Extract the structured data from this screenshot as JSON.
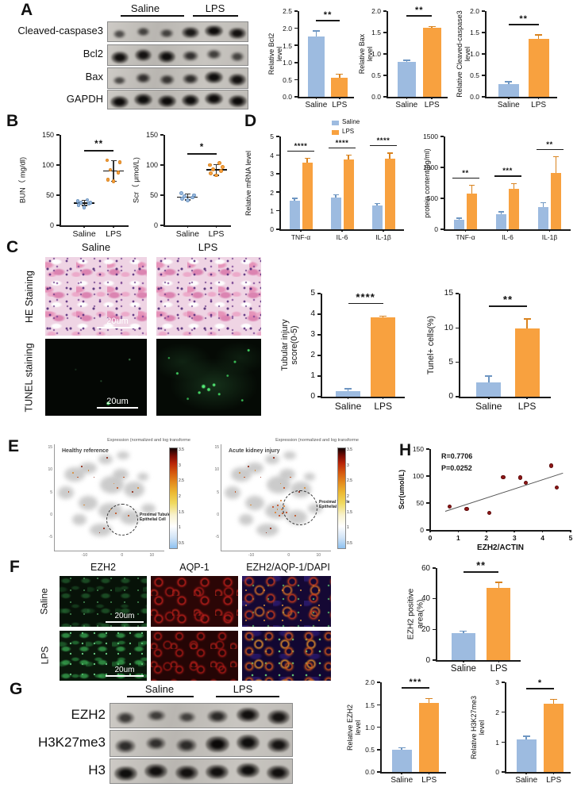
{
  "colors": {
    "saline": "#9dbbe0",
    "saline_edge": "#6e96c2",
    "lps": "#f8a13f",
    "lps_edge": "#d9831f",
    "axis": "#1a1a1a",
    "dot_red": "#8f1616",
    "dot_red_edge": "#5f0d0d"
  },
  "groups": [
    "Saline",
    "LPS"
  ],
  "panel_letters": {
    "a": "A",
    "b": "B",
    "c": "C",
    "d": "D",
    "e": "E",
    "f": "F",
    "g": "G",
    "h": "H"
  },
  "scale_bar": "20um",
  "legend": {
    "items": [
      "Saline",
      "LPS"
    ]
  },
  "blots": {
    "a": {
      "rows": [
        {
          "label": "Cleaved-caspase3",
          "bands": [
            0.25,
            0.35,
            0.35,
            0.8,
            0.95,
            0.88
          ]
        },
        {
          "label": "Bcl2",
          "bands": [
            0.9,
            0.86,
            0.92,
            0.55,
            0.4,
            0.34
          ]
        },
        {
          "label": "Bax",
          "bands": [
            0.3,
            0.55,
            0.5,
            0.6,
            0.92,
            0.88
          ]
        },
        {
          "label": "GAPDH",
          "bands": [
            0.95,
            0.93,
            0.95,
            0.94,
            0.95,
            0.96
          ]
        }
      ]
    },
    "g": {
      "rows": [
        {
          "label": "EZH2",
          "bands": [
            0.45,
            0.4,
            0.35,
            0.62,
            0.9,
            0.85
          ]
        },
        {
          "label": "H3K27me3",
          "bands": [
            0.6,
            0.55,
            0.6,
            0.97,
            0.92,
            0.85
          ]
        },
        {
          "label": "H3",
          "bands": [
            0.92,
            0.9,
            0.88,
            0.9,
            0.92,
            0.9
          ]
        }
      ]
    }
  },
  "panel_c": {
    "row_labels": [
      "HE Staining",
      "TUNEL staining"
    ]
  },
  "panel_f": {
    "col_labels": [
      "EZH2",
      "AQP-1",
      "EZH2/AQP-1/DAPI"
    ],
    "row_labels": [
      "Saline",
      "LPS"
    ]
  },
  "umap": {
    "cb_title": "Expression (normalized and log transforme",
    "cb_ticks": [
      "3.5",
      "3",
      "2.5",
      "2",
      "1.5",
      "1",
      "0.5"
    ],
    "yticks": [
      "15",
      "10",
      "5",
      "0",
      "-5"
    ],
    "xticks": [
      "-10",
      "0",
      "10"
    ],
    "titles": [
      "Healthy reference",
      "Acute kidney injury"
    ],
    "annotation": "Proximal Tubule\nEpithelial Cell"
  },
  "chart_data": {
    "bcl2": {
      "type": "bars",
      "title": "",
      "ylabel": "Relative Bcl2\nlevel",
      "ylim": [
        0,
        2.5
      ],
      "step": 0.5,
      "dec": 1,
      "categories": [
        "Saline",
        "LPS"
      ],
      "values": [
        1.75,
        0.56
      ],
      "errors": [
        0.17,
        0.1
      ],
      "sig": "**"
    },
    "bax": {
      "type": "bars",
      "ylabel": "Relative Bax\nlevel",
      "ylim": [
        0,
        2.0
      ],
      "step": 0.5,
      "dec": 1,
      "categories": [
        "Saline",
        "LPS"
      ],
      "values": [
        0.81,
        1.61
      ],
      "errors": [
        0.04,
        0.03
      ],
      "sig": "**"
    },
    "ccasp3": {
      "type": "bars",
      "ylabel": "Relative Cleaved-caspase3\nlevel",
      "ylim": [
        0,
        2.0
      ],
      "step": 0.5,
      "dec": 1,
      "categories": [
        "Saline",
        "LPS"
      ],
      "values": [
        0.29,
        1.36
      ],
      "errors": [
        0.06,
        0.08
      ],
      "sig": "**"
    },
    "bun": {
      "type": "dots",
      "ylabel": "BUN（ mg/dl)",
      "ylim": [
        0,
        150
      ],
      "step": 50,
      "dec": 0,
      "categories": [
        "Saline",
        "LPS"
      ],
      "points": [
        [
          30,
          34,
          36,
          37,
          38,
          40,
          42
        ],
        [
          73,
          76,
          88,
          92,
          105,
          108
        ]
      ],
      "mean": [
        37,
        90
      ],
      "sd": [
        4,
        17
      ],
      "sig": "**"
    },
    "scr": {
      "type": "dots",
      "ylabel": "Scr（ μmol/L)",
      "ylim": [
        0,
        150
      ],
      "step": 50,
      "dec": 0,
      "categories": [
        "Saline",
        "LPS"
      ],
      "points": [
        [
          41,
          44,
          46,
          48,
          50,
          53
        ],
        [
          83,
          86,
          90,
          93,
          97,
          100,
          103
        ]
      ],
      "mean": [
        47,
        92
      ],
      "sd": [
        5,
        9
      ],
      "sig": "*"
    },
    "mrna": {
      "type": "groups",
      "ylabel": "Relative mRNA level",
      "ylim": [
        0,
        5
      ],
      "step": 1,
      "dec": 0,
      "categories": [
        "TNF-α",
        "IL-6",
        "IL-1β"
      ],
      "series": [
        {
          "name": "Saline",
          "values": [
            1.55,
            1.72,
            1.3
          ],
          "errors": [
            0.12,
            0.15,
            0.08
          ]
        },
        {
          "name": "LPS",
          "values": [
            3.57,
            3.77,
            3.82
          ],
          "errors": [
            0.25,
            0.22,
            0.28
          ]
        }
      ],
      "sig": [
        "****",
        "****",
        "****"
      ]
    },
    "protein": {
      "type": "groups",
      "ylabel": "protein content(pg/ml)",
      "ylim": [
        0,
        1500
      ],
      "step": 500,
      "dec": 0,
      "categories": [
        "TNF-α",
        "IL-6",
        "IL-1β"
      ],
      "series": [
        {
          "name": "Saline",
          "values": [
            150,
            240,
            360
          ],
          "errors": [
            30,
            40,
            70
          ]
        },
        {
          "name": "LPS",
          "values": [
            580,
            660,
            910
          ],
          "errors": [
            130,
            80,
            260
          ]
        }
      ],
      "sig": [
        "**",
        "***",
        "**"
      ]
    },
    "injury": {
      "type": "bars",
      "ylabel": "Tubular injury\nscore(0-5)",
      "ylim": [
        0,
        5
      ],
      "step": 1,
      "dec": 0,
      "categories": [
        "Saline",
        "LPS"
      ],
      "values": [
        0.28,
        3.85
      ],
      "errors": [
        0.1,
        0.06
      ],
      "sig": "****"
    },
    "tunelpct": {
      "type": "bars",
      "ylabel": "Tunel+ cells(%)",
      "ylim": [
        0,
        15
      ],
      "step": 5,
      "dec": 0,
      "categories": [
        "Saline",
        "LPS"
      ],
      "values": [
        2.1,
        9.9
      ],
      "errors": [
        0.9,
        1.4
      ],
      "sig": "**"
    },
    "ezh2area": {
      "type": "bars",
      "ylabel": "EZH2 positive\narea(%)",
      "ylim": [
        0,
        60
      ],
      "step": 20,
      "dec": 0,
      "categories": [
        "Saline",
        "LPS"
      ],
      "values": [
        17.5,
        47.2
      ],
      "errors": [
        1.3,
        3.6
      ],
      "sig": "**"
    },
    "ezh2": {
      "type": "bars",
      "ylabel": "Relative EZH2\nlevel",
      "ylim": [
        0,
        2.0
      ],
      "step": 0.5,
      "dec": 1,
      "categories": [
        "Saline",
        "LPS"
      ],
      "values": [
        0.49,
        1.54
      ],
      "errors": [
        0.05,
        0.1
      ],
      "sig": "***"
    },
    "h3k27me3": {
      "type": "bars",
      "ylabel": "Relative H3K27me3\nlevel",
      "ylim": [
        0,
        3
      ],
      "step": 1,
      "dec": 0,
      "categories": [
        "Saline",
        "LPS"
      ],
      "values": [
        1.1,
        2.27
      ],
      "errors": [
        0.1,
        0.16
      ],
      "sig": "*"
    },
    "correlation": {
      "type": "xy",
      "ylabel": "Scr(umol/L)",
      "xlabel": "EZH2/ACTIN",
      "xlim": [
        0,
        5
      ],
      "xstep": 1,
      "ylim": [
        0,
        150
      ],
      "step": 50,
      "dec": 0,
      "points": [
        [
          0.7,
          43
        ],
        [
          1.3,
          39
        ],
        [
          2.1,
          32
        ],
        [
          2.6,
          98
        ],
        [
          3.2,
          97
        ],
        [
          3.4,
          88
        ],
        [
          4.3,
          119
        ],
        [
          4.5,
          79
        ]
      ],
      "trend": [
        [
          0.55,
          35
        ],
        [
          4.75,
          106
        ]
      ],
      "annotations": [
        "R=0.7706",
        "P=0.0252"
      ]
    }
  }
}
